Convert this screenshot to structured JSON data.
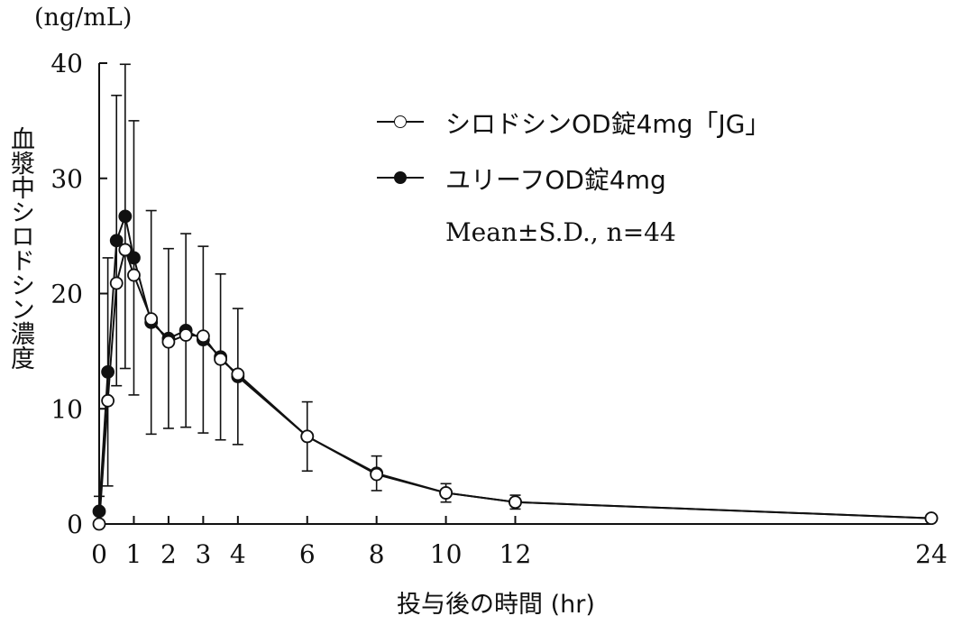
{
  "chart_data": {
    "type": "line",
    "unit_label": "(ng/mL)",
    "ylabel": "血漿中シロドシン濃度",
    "xlabel": "投与後の時間 (hr)",
    "ylim": [
      0,
      40
    ],
    "yticks": [
      0,
      10,
      20,
      30,
      40
    ],
    "xticks": [
      0,
      1,
      2,
      3,
      4,
      6,
      8,
      10,
      12,
      24
    ],
    "stats_note": "Mean±S.D., n=44",
    "legend_position": "top-right",
    "series": [
      {
        "name": "シロドシンOD錠4mg「JG」",
        "marker": "open-circle",
        "color": "#ffffff",
        "x": [
          0,
          0.25,
          0.5,
          0.75,
          1,
          1.5,
          2,
          2.5,
          3,
          3.5,
          4,
          6,
          8,
          10,
          12,
          24
        ],
        "y": [
          0,
          10.7,
          20.9,
          23.8,
          21.6,
          17.8,
          15.8,
          16.4,
          16.3,
          14.3,
          13.0,
          7.6,
          4.3,
          2.7,
          1.9,
          0.5
        ],
        "err": [
          0,
          0,
          0,
          0,
          0,
          0,
          0,
          0,
          0,
          0,
          0,
          0,
          0,
          0,
          0,
          0
        ]
      },
      {
        "name": "ユリーフOD錠4mg",
        "marker": "filled-circle",
        "color": "#111111",
        "x": [
          0,
          0.25,
          0.5,
          0.75,
          1,
          1.5,
          2,
          2.5,
          3,
          3.5,
          4,
          6,
          8,
          10,
          12,
          24
        ],
        "y": [
          1.1,
          13.2,
          24.6,
          26.7,
          23.1,
          17.5,
          16.1,
          16.8,
          16.0,
          14.5,
          12.8,
          7.6,
          4.4,
          2.7,
          1.9,
          0.5
        ],
        "err": [
          1.3,
          9.9,
          12.6,
          13.2,
          11.9,
          9.7,
          7.8,
          8.4,
          8.1,
          7.2,
          5.9,
          3.0,
          1.5,
          0.8,
          0.6,
          0.2
        ]
      }
    ]
  }
}
